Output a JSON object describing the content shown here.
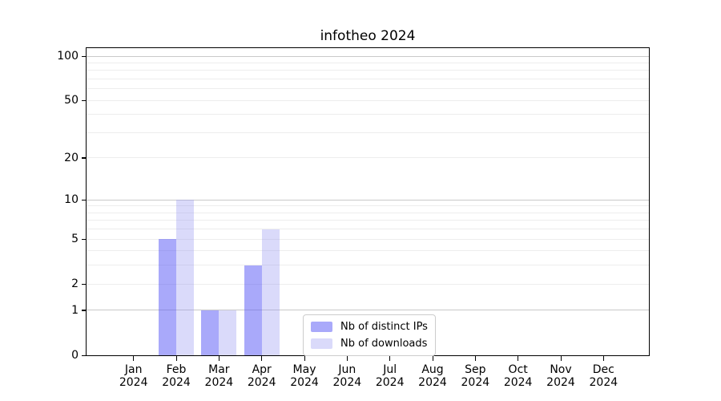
{
  "chart_data": {
    "type": "bar",
    "title": "infotheo 2024",
    "categories": [
      "Jan 2024",
      "Feb 2024",
      "Mar 2024",
      "Apr 2024",
      "May 2024",
      "Jun 2024",
      "Jul 2024",
      "Aug 2024",
      "Sep 2024",
      "Oct 2024",
      "Nov 2024",
      "Dec 2024"
    ],
    "series": [
      {
        "name": "Nb of distinct IPs",
        "color": "rgba(90,90,245,0.52)",
        "values": [
          0,
          5,
          1,
          3,
          0,
          0,
          0,
          0,
          0,
          0,
          0,
          0
        ]
      },
      {
        "name": "Nb of downloads",
        "color": "rgba(150,150,240,0.35)",
        "values": [
          0,
          10,
          1,
          6,
          0,
          0,
          0,
          0,
          0,
          0,
          0,
          0
        ]
      }
    ],
    "yscale": "log1p",
    "ylim": [
      0,
      113
    ],
    "yticks": [
      0,
      1,
      2,
      5,
      10,
      20,
      50,
      100
    ],
    "ytick_labels": [
      "0",
      "1",
      "2",
      "5",
      "10",
      "20",
      "50",
      "100"
    ],
    "grid": "horizontal",
    "grid_major_values": [
      1,
      10,
      100
    ],
    "grid_minor_values": [
      2,
      3,
      4,
      5,
      6,
      7,
      8,
      9,
      20,
      30,
      40,
      50,
      60,
      70,
      80,
      90
    ],
    "legend_position": "lower center inside plot"
  },
  "colors": {
    "background": "#ffffff",
    "grid_major": "#c9c9c9",
    "grid_minor": "#ededed",
    "axis": "#000000",
    "text": "#000000",
    "legend_border": "#cccccc"
  }
}
